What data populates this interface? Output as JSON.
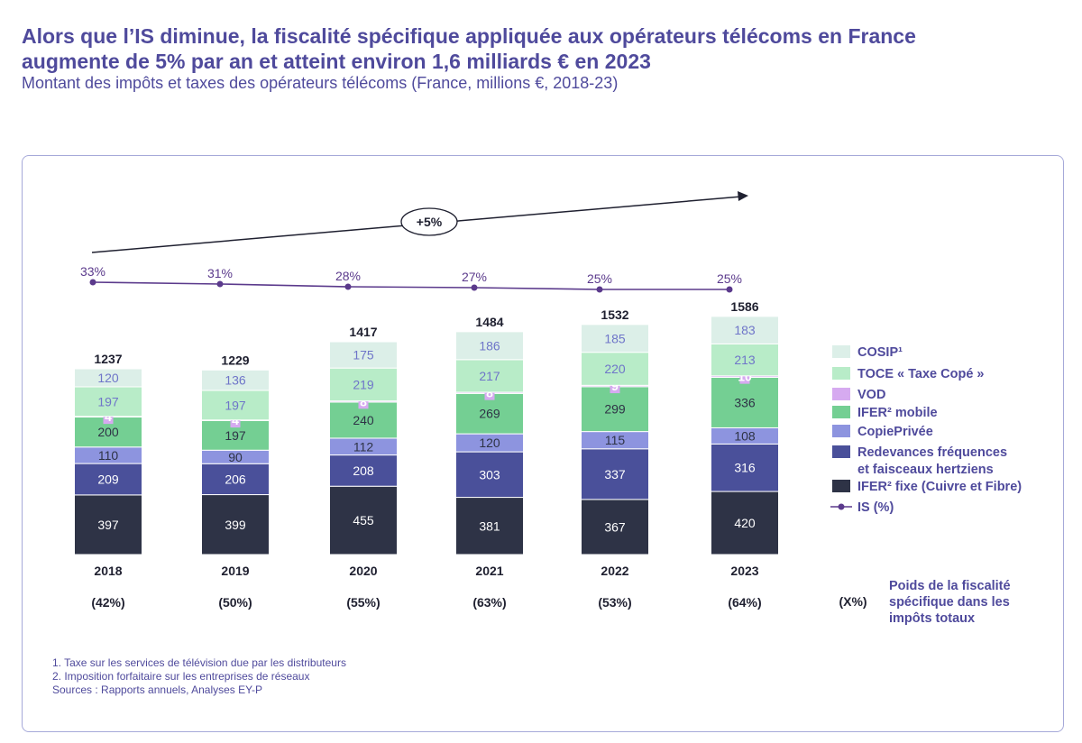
{
  "header": {
    "title_line1": "Alors que l’IS diminue, la fiscalité spécifique appliquée aux opérateurs télécoms en France",
    "title_line2": "augmente de 5% par an et atteint environ 1,6 milliards € en 2023",
    "subtitle": "Montant des impôts et taxes des opérateurs télécoms (France, millions €, 2018-23)"
  },
  "chart_data": {
    "type": "bar",
    "stacked": true,
    "categories": [
      "2018",
      "2019",
      "2020",
      "2021",
      "2022",
      "2023"
    ],
    "series": [
      {
        "name": "IFER² fixe (Cuivre et Fibre)",
        "color": "#2e3346",
        "text_color": "#ffffff",
        "values": [
          397,
          399,
          455,
          381,
          367,
          420
        ]
      },
      {
        "name": "Redevances fréquences et faisceaux hertziens",
        "color": "#4a509a",
        "text_color": "#ffffff",
        "values": [
          209,
          206,
          208,
          303,
          337,
          316
        ]
      },
      {
        "name": "CopiePrivée",
        "color": "#8d94df",
        "text_color": "#2e3346",
        "values": [
          110,
          90,
          112,
          120,
          115,
          108
        ]
      },
      {
        "name": "IFER² mobile",
        "color": "#74cf93",
        "text_color": "#2e3346",
        "values": [
          200,
          197,
          240,
          269,
          299,
          336
        ]
      },
      {
        "name": "VOD",
        "color": "#d6aaf0",
        "text_color": "#ffffff",
        "values": [
          4,
          4,
          8,
          8,
          9,
          10
        ]
      },
      {
        "name": "TOCE « Taxe Copé »",
        "color": "#b8ecc8",
        "text_color": "#6f75c9",
        "values": [
          197,
          197,
          219,
          217,
          220,
          213
        ]
      },
      {
        "name": "COSIP¹",
        "color": "#dcefe8",
        "text_color": "#6f75c9",
        "values": [
          120,
          136,
          175,
          186,
          185,
          183
        ]
      }
    ],
    "legend_labels": [
      "COSIP¹",
      "TOCE « Taxe Copé »",
      "VOD",
      "IFER² mobile",
      "CopiePrivée",
      "Redevances fréquences",
      "et faisceaux hertziens",
      "IFER² fixe (Cuivre et Fibre)",
      "IS (%)"
    ],
    "totals": [
      1237,
      1229,
      1417,
      1484,
      1532,
      1586
    ],
    "is_rate_series": {
      "name": "IS (%)",
      "color": "#5b3a8c",
      "values": [
        33,
        31,
        28,
        27,
        25,
        25
      ],
      "labels": [
        "33%",
        "31%",
        "28%",
        "27%",
        "25%",
        "25%"
      ]
    },
    "share_labels": [
      "(42%)",
      "(50%)",
      "(55%)",
      "(63%)",
      "(53%)",
      "(64%)"
    ],
    "share_header": "(X%)",
    "share_caption": [
      "Poids de la fiscalité",
      "spécifique dans les",
      "impôts totaux"
    ],
    "growth_annotation": "+5%",
    "ylim": [
      0,
      1600
    ],
    "legend_position": "right"
  },
  "footnotes": [
    "1. Taxe sur les services de télévision due par les distributeurs",
    "2. Imposition forfaitaire sur les entreprises de réseaux",
    "Sources : Rapports annuels, Analyses EY-P"
  ]
}
